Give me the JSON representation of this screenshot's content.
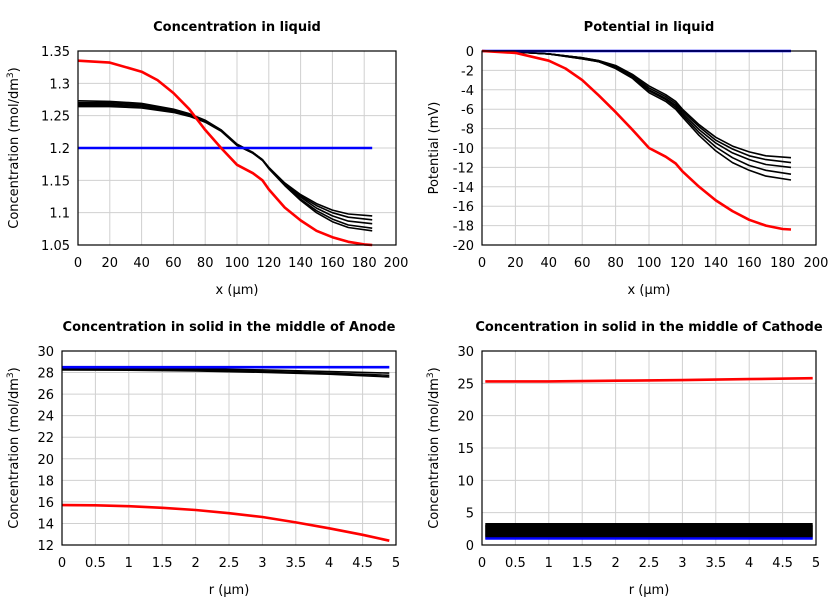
{
  "chart_data": [
    {
      "type": "line",
      "title": "Concentration in liquid",
      "xlabel": "x (µm)",
      "ylabel": "Concentration (mol/dm",
      "ylabel_sup": "3",
      "ylabel_end": ")",
      "xlim": [
        0,
        200
      ],
      "ylim": [
        1.05,
        1.35
      ],
      "xticks": [
        0,
        20,
        40,
        60,
        80,
        100,
        120,
        140,
        160,
        180,
        200
      ],
      "yticks": [
        1.05,
        1.1,
        1.15,
        1.2,
        1.25,
        1.3,
        1.35
      ],
      "grid": true,
      "series": [
        {
          "color": "#000000",
          "x": [
            0,
            20,
            40,
            60,
            70,
            80,
            90,
            100,
            110,
            116,
            120,
            130,
            140,
            150,
            160,
            170,
            185
          ],
          "y": [
            1.273,
            1.272,
            1.269,
            1.26,
            1.253,
            1.243,
            1.228,
            1.206,
            1.193,
            1.182,
            1.17,
            1.146,
            1.128,
            1.114,
            1.104,
            1.098,
            1.095
          ]
        },
        {
          "color": "#000000",
          "x": [
            0,
            20,
            40,
            60,
            70,
            80,
            90,
            100,
            110,
            116,
            120,
            130,
            140,
            150,
            160,
            170,
            185
          ],
          "y": [
            1.27,
            1.27,
            1.267,
            1.259,
            1.252,
            1.242,
            1.228,
            1.205,
            1.193,
            1.182,
            1.17,
            1.145,
            1.126,
            1.111,
            1.1,
            1.093,
            1.089
          ]
        },
        {
          "color": "#000000",
          "x": [
            0,
            20,
            40,
            60,
            70,
            80,
            90,
            100,
            110,
            116,
            120,
            130,
            140,
            150,
            160,
            170,
            185
          ],
          "y": [
            1.268,
            1.268,
            1.265,
            1.257,
            1.251,
            1.241,
            1.227,
            1.205,
            1.193,
            1.182,
            1.169,
            1.144,
            1.124,
            1.107,
            1.095,
            1.087,
            1.083
          ]
        },
        {
          "color": "#000000",
          "x": [
            0,
            20,
            40,
            60,
            70,
            80,
            90,
            100,
            110,
            116,
            120,
            130,
            140,
            150,
            160,
            170,
            185
          ],
          "y": [
            1.266,
            1.266,
            1.264,
            1.256,
            1.25,
            1.24,
            1.227,
            1.204,
            1.192,
            1.181,
            1.169,
            1.143,
            1.121,
            1.103,
            1.09,
            1.081,
            1.076
          ]
        },
        {
          "color": "#000000",
          "x": [
            0,
            20,
            40,
            60,
            70,
            80,
            90,
            100,
            110,
            116,
            120,
            130,
            140,
            150,
            160,
            170,
            185
          ],
          "y": [
            1.264,
            1.264,
            1.262,
            1.255,
            1.249,
            1.24,
            1.226,
            1.204,
            1.192,
            1.181,
            1.168,
            1.142,
            1.119,
            1.1,
            1.086,
            1.077,
            1.072
          ]
        },
        {
          "color": "#0000ff",
          "x": [
            0,
            185
          ],
          "y": [
            1.2,
            1.2
          ]
        },
        {
          "color": "#ff0000",
          "x": [
            0,
            20,
            40,
            50,
            60,
            70,
            80,
            90,
            100,
            110,
            116,
            120,
            130,
            140,
            150,
            160,
            170,
            180,
            185
          ],
          "y": [
            1.335,
            1.332,
            1.318,
            1.305,
            1.285,
            1.26,
            1.228,
            1.2,
            1.174,
            1.161,
            1.15,
            1.136,
            1.108,
            1.088,
            1.072,
            1.062,
            1.055,
            1.051,
            1.05
          ]
        }
      ]
    },
    {
      "type": "line",
      "title": "Potential in liquid",
      "xlabel": "x (µm)",
      "ylabel": "Potential (mV)",
      "xlim": [
        0,
        200
      ],
      "ylim": [
        -20,
        0
      ],
      "xticks": [
        0,
        20,
        40,
        60,
        80,
        100,
        120,
        140,
        160,
        180,
        200
      ],
      "yticks": [
        -20,
        -18,
        -16,
        -14,
        -12,
        -10,
        -8,
        -6,
        -4,
        -2,
        0
      ],
      "grid": true,
      "series": [
        {
          "color": "#000000",
          "x": [
            0,
            20,
            40,
            60,
            70,
            80,
            90,
            100,
            110,
            116,
            120,
            130,
            140,
            150,
            160,
            170,
            185
          ],
          "y": [
            0,
            -0.1,
            -0.3,
            -0.7,
            -1,
            -1.5,
            -2.4,
            -3.6,
            -4.5,
            -5.2,
            -6,
            -7.6,
            -8.9,
            -9.8,
            -10.4,
            -10.8,
            -11
          ]
        },
        {
          "color": "#000000",
          "x": [
            0,
            20,
            40,
            60,
            70,
            80,
            90,
            100,
            110,
            116,
            120,
            130,
            140,
            150,
            160,
            170,
            185
          ],
          "y": [
            0,
            -0.1,
            -0.3,
            -0.7,
            -1,
            -1.6,
            -2.5,
            -3.8,
            -4.7,
            -5.4,
            -6.2,
            -7.8,
            -9.2,
            -10.1,
            -10.8,
            -11.2,
            -11.5
          ]
        },
        {
          "color": "#000000",
          "x": [
            0,
            20,
            40,
            60,
            70,
            80,
            90,
            100,
            110,
            116,
            120,
            130,
            140,
            150,
            160,
            170,
            185
          ],
          "y": [
            0,
            -0.1,
            -0.3,
            -0.7,
            -1.1,
            -1.7,
            -2.6,
            -4,
            -4.9,
            -5.6,
            -6.4,
            -8.1,
            -9.5,
            -10.5,
            -11.2,
            -11.7,
            -12
          ]
        },
        {
          "color": "#000000",
          "x": [
            0,
            20,
            40,
            60,
            70,
            80,
            90,
            100,
            110,
            116,
            120,
            130,
            140,
            150,
            160,
            170,
            185
          ],
          "y": [
            0,
            -0.1,
            -0.3,
            -0.8,
            -1.1,
            -1.7,
            -2.7,
            -4.1,
            -5,
            -5.8,
            -6.6,
            -8.4,
            -9.9,
            -11,
            -11.8,
            -12.3,
            -12.7
          ]
        },
        {
          "color": "#000000",
          "x": [
            0,
            20,
            40,
            60,
            70,
            80,
            90,
            100,
            110,
            116,
            120,
            130,
            140,
            150,
            160,
            170,
            185
          ],
          "y": [
            0,
            -0.1,
            -0.3,
            -0.8,
            -1.1,
            -1.8,
            -2.8,
            -4.3,
            -5.2,
            -6,
            -6.8,
            -8.7,
            -10.3,
            -11.5,
            -12.3,
            -12.9,
            -13.3
          ]
        },
        {
          "color": "#0000ff",
          "x": [
            0,
            185
          ],
          "y": [
            0,
            0
          ]
        },
        {
          "color": "#ff0000",
          "x": [
            0,
            20,
            40,
            50,
            60,
            70,
            80,
            90,
            100,
            110,
            116,
            120,
            130,
            140,
            150,
            160,
            170,
            180,
            185
          ],
          "y": [
            0,
            -0.2,
            -1,
            -1.8,
            -3,
            -4.6,
            -6.3,
            -8.1,
            -10,
            -10.9,
            -11.6,
            -12.4,
            -14,
            -15.4,
            -16.5,
            -17.4,
            -18,
            -18.35,
            -18.4
          ]
        }
      ]
    },
    {
      "type": "line",
      "title": "Concentration in solid in the middle of Anode",
      "xlabel": "r (µm)",
      "ylabel": "Concentration (mol/dm",
      "ylabel_sup": "3",
      "ylabel_end": ")",
      "xlim": [
        0,
        5
      ],
      "ylim": [
        12,
        30
      ],
      "xticks": [
        0,
        0.5,
        1,
        1.5,
        2,
        2.5,
        3,
        3.5,
        4,
        4.5,
        5
      ],
      "yticks": [
        12,
        14,
        16,
        18,
        20,
        22,
        24,
        26,
        28,
        30
      ],
      "grid": true,
      "series": [
        {
          "color": "#000000",
          "x": [
            0,
            1,
            2,
            3,
            4,
            4.9
          ],
          "y": [
            28.45,
            28.42,
            28.35,
            28.25,
            28.1,
            27.95
          ]
        },
        {
          "color": "#000000",
          "x": [
            0,
            1,
            2,
            3,
            4,
            4.9
          ],
          "y": [
            28.35,
            28.32,
            28.25,
            28.12,
            27.95,
            27.75
          ]
        },
        {
          "color": "#000000",
          "x": [
            0,
            1,
            2,
            3,
            4,
            4.9
          ],
          "y": [
            28.25,
            28.22,
            28.15,
            28.02,
            27.85,
            27.6
          ]
        },
        {
          "color": "#0000ff",
          "x": [
            0,
            4.9
          ],
          "y": [
            28.5,
            28.5
          ]
        },
        {
          "color": "#ff0000",
          "x": [
            0,
            0.5,
            1,
            1.5,
            2,
            2.5,
            3,
            3.5,
            4,
            4.5,
            4.9
          ],
          "y": [
            15.7,
            15.68,
            15.6,
            15.45,
            15.25,
            14.95,
            14.6,
            14.1,
            13.55,
            12.95,
            12.4
          ]
        }
      ]
    },
    {
      "type": "line",
      "title": "Concentration in solid in the middle of Cathode",
      "xlabel": "r (µm)",
      "ylabel": "Concentration (mol/dm",
      "ylabel_sup": "3",
      "ylabel_end": ")",
      "xlim": [
        0,
        5
      ],
      "ylim": [
        0,
        30
      ],
      "xticks": [
        0,
        0.5,
        1,
        1.5,
        2,
        2.5,
        3,
        3.5,
        4,
        4.5,
        5
      ],
      "yticks": [
        0,
        5,
        10,
        15,
        20,
        25,
        30
      ],
      "grid": true,
      "series": [
        {
          "color": "#000000",
          "x": [
            0.05,
            4.95
          ],
          "y": [
            1.3,
            1.3
          ]
        },
        {
          "color": "#000000",
          "x": [
            0.05,
            4.95
          ],
          "y": [
            1.6,
            1.6
          ]
        },
        {
          "color": "#000000",
          "x": [
            0.05,
            4.95
          ],
          "y": [
            1.9,
            1.9
          ]
        },
        {
          "color": "#000000",
          "x": [
            0.05,
            4.95
          ],
          "y": [
            2.2,
            2.2
          ]
        },
        {
          "color": "#000000",
          "x": [
            0.05,
            4.95
          ],
          "y": [
            2.5,
            2.5
          ]
        },
        {
          "color": "#000000",
          "x": [
            0.05,
            4.95
          ],
          "y": [
            2.8,
            2.8
          ]
        },
        {
          "color": "#000000",
          "x": [
            0.05,
            4.95
          ],
          "y": [
            3.1,
            3.1
          ]
        },
        {
          "color": "#0000ff",
          "x": [
            0.05,
            4.95
          ],
          "y": [
            1.0,
            1.0
          ]
        },
        {
          "color": "#ff0000",
          "x": [
            0.05,
            1,
            2,
            3,
            4,
            4.95
          ],
          "y": [
            25.3,
            25.3,
            25.4,
            25.5,
            25.65,
            25.8
          ]
        }
      ]
    }
  ]
}
